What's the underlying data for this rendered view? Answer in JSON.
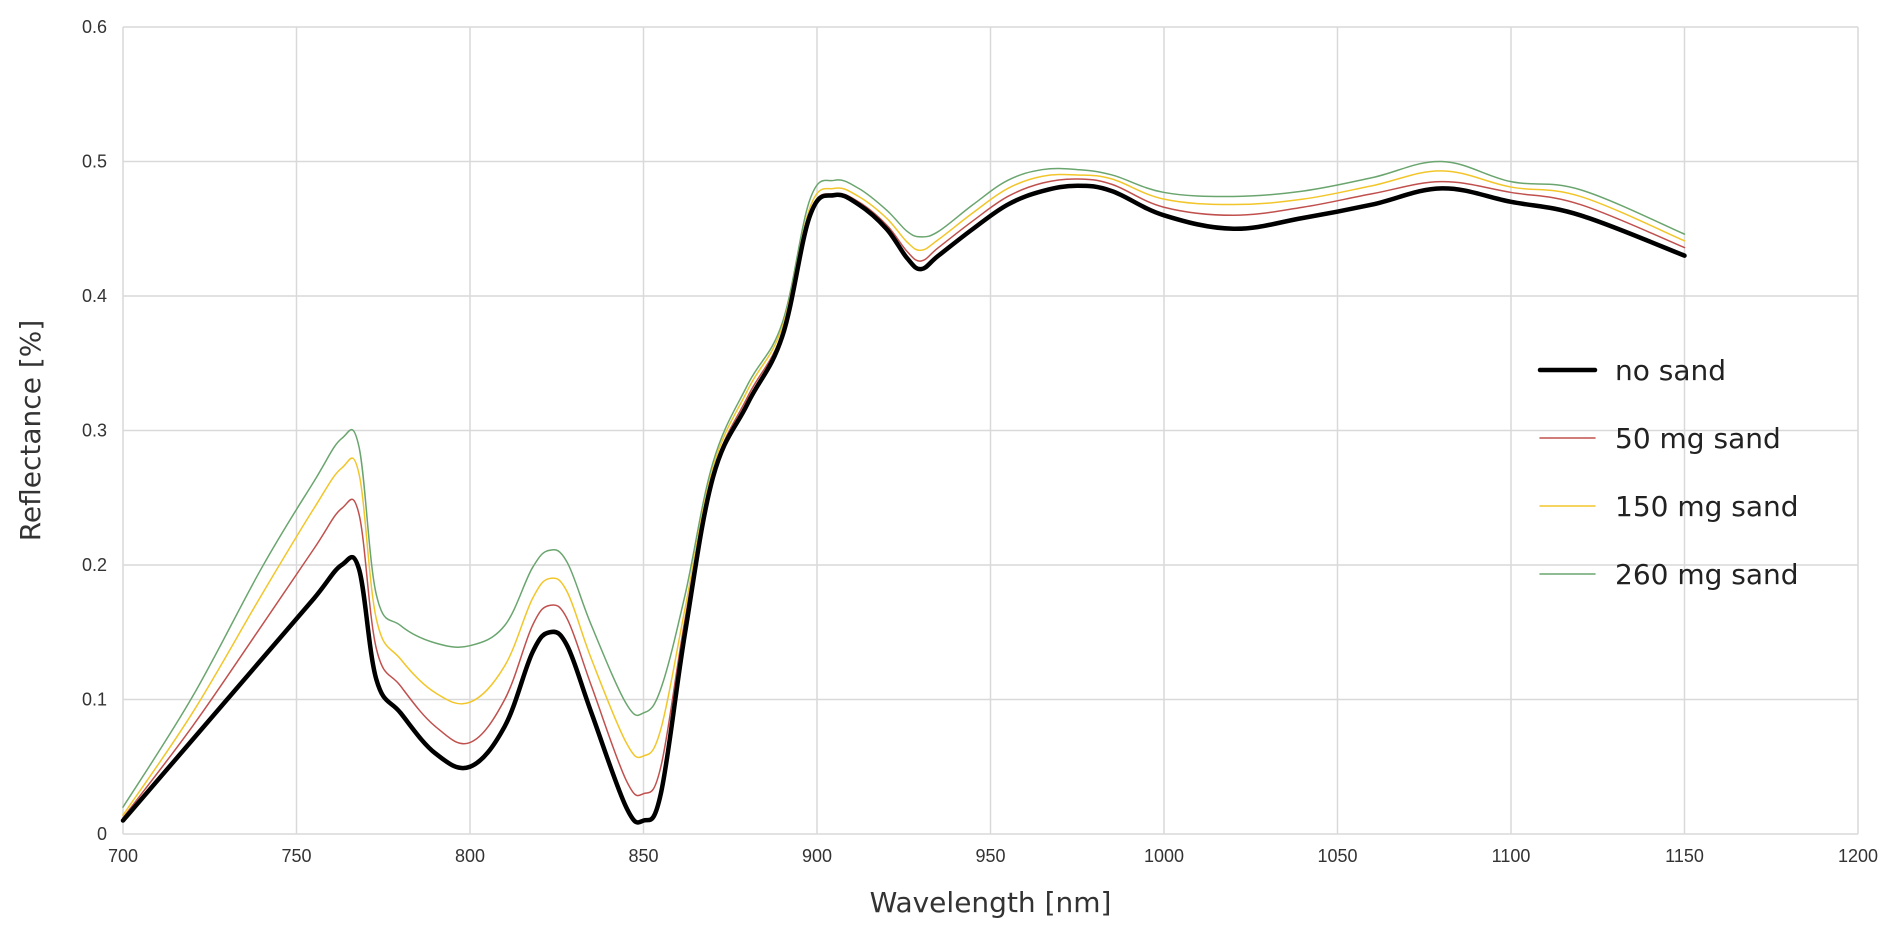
{
  "chart_data": {
    "type": "line",
    "title": "",
    "xlabel": "Wavelength [nm]",
    "ylabel": "Reflectance [%]",
    "xlim": [
      700,
      1200
    ],
    "ylim": [
      0,
      0.6
    ],
    "x_ticks": [
      "700",
      "750",
      "800",
      "850",
      "900",
      "950",
      "1000",
      "1050",
      "1100",
      "1150",
      "1200"
    ],
    "y_ticks": [
      "0",
      "0.1",
      "0.2",
      "0.3",
      "0.4",
      "0.5",
      "0.6"
    ],
    "grid": true,
    "legend_position": "right",
    "x": [
      700,
      720,
      740,
      755,
      763,
      768,
      773,
      780,
      790,
      800,
      810,
      818,
      823,
      828,
      835,
      845,
      850,
      855,
      862,
      870,
      880,
      890,
      898,
      905,
      912,
      920,
      926,
      930,
      935,
      945,
      955,
      965,
      975,
      985,
      1000,
      1020,
      1040,
      1060,
      1080,
      1100,
      1120,
      1150
    ],
    "series": [
      {
        "name": "no sand",
        "color": "#000000",
        "stroke_width": 4.5,
        "values": [
          0.01,
          0.07,
          0.13,
          0.175,
          0.2,
          0.197,
          0.115,
          0.09,
          0.06,
          0.05,
          0.08,
          0.135,
          0.15,
          0.14,
          0.09,
          0.02,
          0.01,
          0.03,
          0.15,
          0.265,
          0.32,
          0.37,
          0.46,
          0.475,
          0.468,
          0.45,
          0.428,
          0.42,
          0.43,
          0.45,
          0.468,
          0.478,
          0.482,
          0.478,
          0.46,
          0.45,
          0.458,
          0.468,
          0.48,
          0.47,
          0.46,
          0.43
        ]
      },
      {
        "name": "50 mg sand",
        "color": "#c0504d",
        "stroke_width": 1.5,
        "values": [
          0.012,
          0.08,
          0.155,
          0.212,
          0.242,
          0.238,
          0.138,
          0.11,
          0.08,
          0.068,
          0.1,
          0.155,
          0.17,
          0.16,
          0.11,
          0.04,
          0.03,
          0.05,
          0.16,
          0.268,
          0.325,
          0.373,
          0.462,
          0.476,
          0.47,
          0.453,
          0.433,
          0.426,
          0.436,
          0.456,
          0.474,
          0.484,
          0.487,
          0.483,
          0.466,
          0.46,
          0.466,
          0.476,
          0.485,
          0.477,
          0.468,
          0.436
        ]
      },
      {
        "name": "150 mg sand",
        "color": "#f2c62a",
        "stroke_width": 1.5,
        "values": [
          0.014,
          0.09,
          0.178,
          0.242,
          0.272,
          0.268,
          0.16,
          0.13,
          0.105,
          0.098,
          0.125,
          0.175,
          0.19,
          0.18,
          0.13,
          0.068,
          0.058,
          0.078,
          0.168,
          0.272,
          0.33,
          0.377,
          0.466,
          0.48,
          0.474,
          0.458,
          0.44,
          0.434,
          0.442,
          0.462,
          0.48,
          0.489,
          0.49,
          0.487,
          0.472,
          0.468,
          0.472,
          0.482,
          0.493,
          0.481,
          0.474,
          0.441
        ]
      },
      {
        "name": "260 mg sand",
        "color": "#6aa56e",
        "stroke_width": 1.5,
        "values": [
          0.02,
          0.102,
          0.198,
          0.262,
          0.294,
          0.288,
          0.178,
          0.155,
          0.142,
          0.14,
          0.155,
          0.198,
          0.211,
          0.202,
          0.155,
          0.097,
          0.09,
          0.108,
          0.178,
          0.276,
          0.334,
          0.38,
          0.472,
          0.486,
          0.48,
          0.464,
          0.448,
          0.444,
          0.448,
          0.468,
          0.486,
          0.494,
          0.494,
          0.49,
          0.477,
          0.474,
          0.478,
          0.488,
          0.5,
          0.485,
          0.479,
          0.446
        ]
      }
    ]
  }
}
